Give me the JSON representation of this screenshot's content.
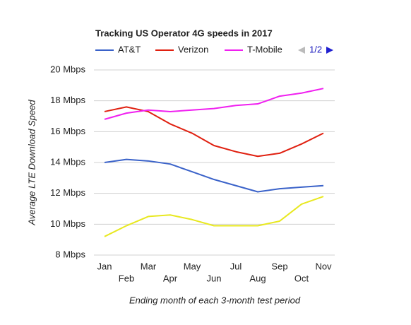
{
  "chart_data": {
    "type": "line",
    "title": "Tracking US Operator 4G speeds in 2017",
    "y_label": "Average LTE Download Speed",
    "x_label": "Ending month of each 3-month test period",
    "legend_page": "1/2",
    "categories": [
      "Jan",
      "Feb",
      "Mar",
      "Apr",
      "May",
      "Jun",
      "Jul",
      "Aug",
      "Sep",
      "Oct",
      "Nov"
    ],
    "series": [
      {
        "name": "AT&T",
        "color": "#3a62c9",
        "values": [
          14.0,
          14.2,
          14.1,
          13.9,
          13.4,
          12.9,
          12.5,
          12.1,
          12.3,
          12.4,
          12.5
        ]
      },
      {
        "name": "Verizon",
        "color": "#e02010",
        "values": [
          17.3,
          17.6,
          17.3,
          16.5,
          15.9,
          15.1,
          14.7,
          14.4,
          14.6,
          15.2,
          15.9
        ]
      },
      {
        "name": "T-Mobile",
        "color": "#f020f0",
        "values": [
          16.8,
          17.2,
          17.4,
          17.3,
          17.4,
          17.5,
          17.7,
          17.8,
          18.3,
          18.5,
          18.8
        ]
      },
      {
        "color": "#e8e820",
        "values": [
          9.2,
          9.9,
          10.5,
          10.6,
          10.3,
          9.9,
          9.9,
          9.9,
          10.2,
          11.3,
          11.8
        ]
      }
    ],
    "ylim": [
      8,
      20
    ],
    "yticks": [
      {
        "value": 8,
        "label": "8 Mbps"
      },
      {
        "value": 10,
        "label": "10 Mbps"
      },
      {
        "value": 12,
        "label": "12 Mbps"
      },
      {
        "value": 14,
        "label": "14 Mbps"
      },
      {
        "value": 16,
        "label": "16 Mbps"
      },
      {
        "value": 18,
        "label": "18 Mbps"
      },
      {
        "value": 20,
        "label": "20 Mbps"
      }
    ],
    "grid": true
  }
}
